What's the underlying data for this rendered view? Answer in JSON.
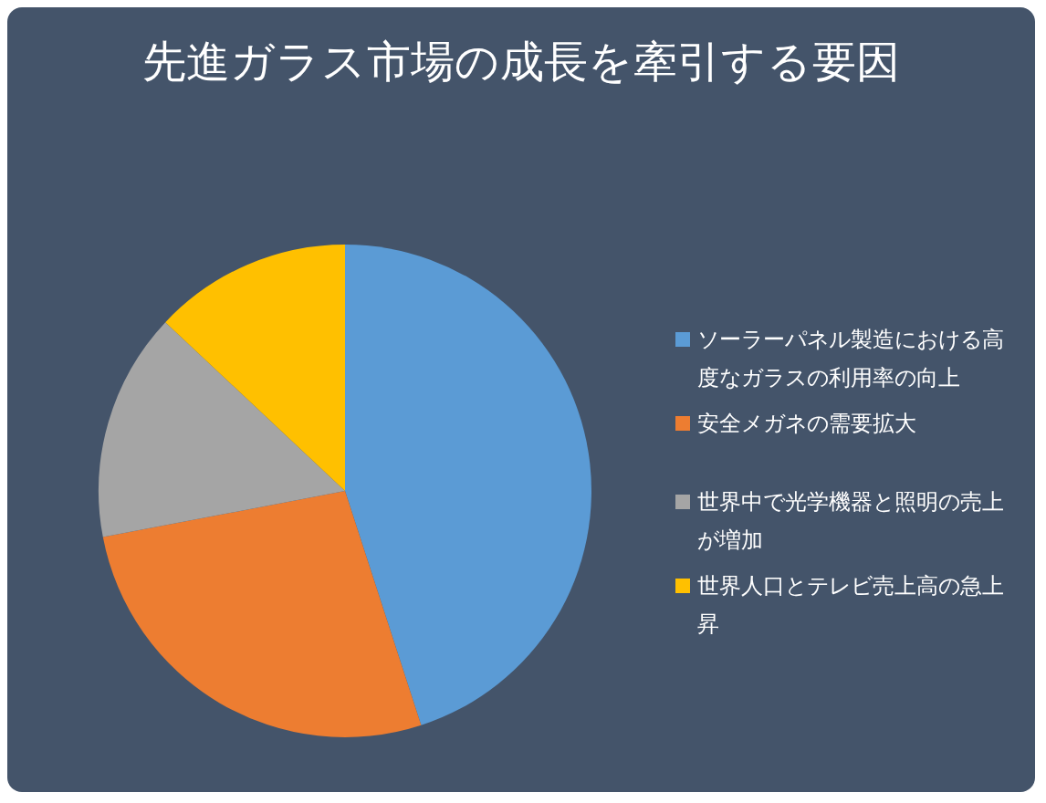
{
  "chart_data": {
    "type": "pie",
    "title": "先進ガラス市場の成長を牽引する要因",
    "categories": [
      "ソーラーパネル製造における高度なガラスの利用率の向上",
      "安全メガネの需要拡大",
      "世界中で光学機器と照明の売上が増加",
      "世界人口とテレビ売上高の急上昇"
    ],
    "values": [
      45,
      27,
      15,
      13
    ],
    "colors": [
      "#5b9bd5",
      "#ed7d31",
      "#a5a5a5",
      "#ffc000"
    ],
    "legend": "right"
  }
}
